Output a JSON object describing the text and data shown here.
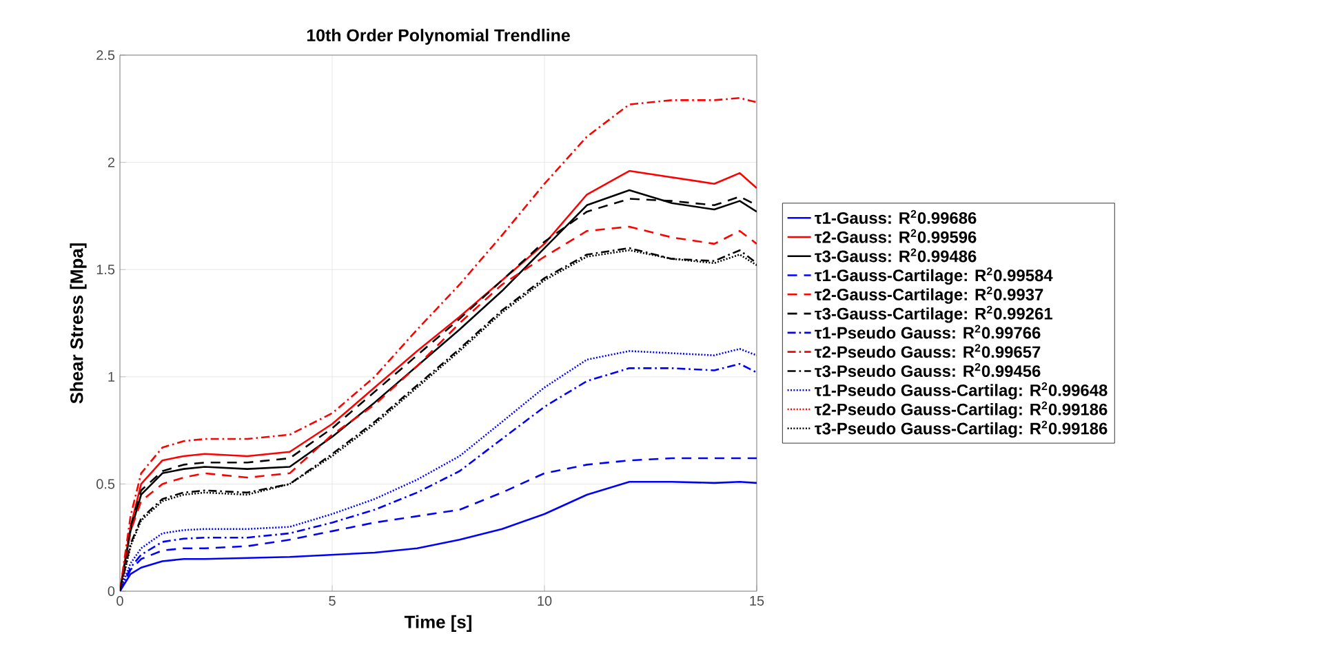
{
  "chart_data": {
    "type": "line",
    "title": "10th Order Polynomial Trendline",
    "xlabel": "Time [s]",
    "ylabel": "Shear Stress [Mpa]",
    "x": [
      0,
      0.25,
      0.5,
      1,
      1.5,
      2,
      3,
      4,
      5,
      6,
      7,
      8,
      9,
      10,
      11,
      12,
      13,
      14,
      14.6,
      15
    ],
    "xlim": [
      0,
      15
    ],
    "xticks": [
      0,
      5,
      10,
      15
    ],
    "ylim": [
      0,
      2.5
    ],
    "yticks": [
      0,
      0.5,
      1,
      1.5,
      2,
      2.5
    ],
    "grid": true,
    "legend": "right",
    "series": [
      {
        "name": "τ1-Gauss: R$^{2}$0.99686",
        "color": "#0000ff",
        "line_style": "solid",
        "values": [
          0,
          0.08,
          0.11,
          0.14,
          0.15,
          0.15,
          0.155,
          0.16,
          0.17,
          0.18,
          0.2,
          0.24,
          0.29,
          0.36,
          0.45,
          0.51,
          0.51,
          0.505,
          0.51,
          0.505
        ]
      },
      {
        "name": "τ2-Gauss: R$^{2}$0.99596",
        "color": "#ff0000",
        "line_style": "solid",
        "values": [
          0,
          0.3,
          0.5,
          0.61,
          0.63,
          0.64,
          0.63,
          0.65,
          0.78,
          0.95,
          1.12,
          1.28,
          1.45,
          1.62,
          1.85,
          1.96,
          1.93,
          1.9,
          1.95,
          1.88
        ]
      },
      {
        "name": "τ3-Gauss: R$^{2}$0.99486",
        "color": "#000000",
        "line_style": "solid",
        "values": [
          0,
          0.28,
          0.45,
          0.55,
          0.57,
          0.58,
          0.57,
          0.58,
          0.72,
          0.88,
          1.05,
          1.22,
          1.4,
          1.6,
          1.8,
          1.87,
          1.81,
          1.78,
          1.82,
          1.77
        ]
      },
      {
        "name": "τ1-Gauss-Cartilage: R$^{2}$0.99584",
        "color": "#0000ff",
        "line_style": "dashed",
        "values": [
          0,
          0.1,
          0.15,
          0.19,
          0.2,
          0.2,
          0.21,
          0.24,
          0.28,
          0.32,
          0.35,
          0.38,
          0.46,
          0.55,
          0.59,
          0.61,
          0.62,
          0.62,
          0.62,
          0.62
        ]
      },
      {
        "name": "τ2-Gauss-Cartilage: R$^{2}$0.9937",
        "color": "#ff0000",
        "line_style": "dashed",
        "values": [
          0,
          0.28,
          0.42,
          0.5,
          0.53,
          0.55,
          0.53,
          0.55,
          0.73,
          0.87,
          1.05,
          1.25,
          1.43,
          1.56,
          1.68,
          1.7,
          1.65,
          1.62,
          1.68,
          1.62
        ]
      },
      {
        "name": "τ3-Gauss-Cartilage: R$^{2}$0.99261",
        "color": "#000000",
        "line_style": "dashed",
        "values": [
          0,
          0.3,
          0.47,
          0.56,
          0.59,
          0.6,
          0.6,
          0.62,
          0.76,
          0.93,
          1.1,
          1.27,
          1.45,
          1.63,
          1.77,
          1.83,
          1.82,
          1.8,
          1.84,
          1.8
        ]
      },
      {
        "name": "τ1-Pseudo Gauss: R$^{2}$0.99766",
        "color": "#0000ff",
        "line_style": "dashdot",
        "values": [
          0,
          0.11,
          0.17,
          0.23,
          0.245,
          0.25,
          0.25,
          0.27,
          0.32,
          0.38,
          0.46,
          0.56,
          0.71,
          0.86,
          0.98,
          1.04,
          1.04,
          1.03,
          1.06,
          1.02
        ]
      },
      {
        "name": "τ2-Pseudo Gauss: R$^{2}$0.99657",
        "color": "#ff0000",
        "line_style": "dashdot",
        "values": [
          0,
          0.35,
          0.55,
          0.67,
          0.7,
          0.71,
          0.71,
          0.73,
          0.83,
          1,
          1.22,
          1.43,
          1.66,
          1.9,
          2.12,
          2.27,
          2.29,
          2.29,
          2.3,
          2.28
        ]
      },
      {
        "name": "τ3-Pseudo Gauss: R$^{2}$0.99456",
        "color": "#000000",
        "line_style": "dashdot",
        "values": [
          0,
          0.22,
          0.34,
          0.43,
          0.46,
          0.47,
          0.46,
          0.5,
          0.64,
          0.79,
          0.96,
          1.13,
          1.31,
          1.46,
          1.57,
          1.6,
          1.55,
          1.54,
          1.59,
          1.53
        ]
      },
      {
        "name": "τ1-Pseudo Gauss-Cartilag: R$^{2}$0.99648",
        "color": "#0000ff",
        "line_style": "dotted",
        "values": [
          0,
          0.13,
          0.2,
          0.27,
          0.285,
          0.29,
          0.29,
          0.3,
          0.36,
          0.43,
          0.52,
          0.63,
          0.79,
          0.95,
          1.08,
          1.12,
          1.11,
          1.1,
          1.13,
          1.1
        ]
      },
      {
        "name": "τ2-Pseudo Gauss-Cartilag: R$^{2}$0.99186",
        "color": "#ff0000",
        "line_style": "dotted",
        "values": [
          0,
          0.21,
          null,
          null,
          null,
          null,
          null,
          null,
          null,
          null,
          null,
          null,
          null,
          null,
          null,
          null,
          null,
          null,
          null,
          null
        ]
      },
      {
        "name": "τ3-Pseudo Gauss-Cartilag: R$^{2}$0.99186",
        "color": "#000000",
        "line_style": "dotted",
        "values": [
          0,
          0.21,
          0.33,
          0.42,
          0.45,
          0.46,
          0.45,
          0.5,
          0.63,
          0.78,
          0.95,
          1.12,
          1.3,
          1.45,
          1.56,
          1.59,
          1.55,
          1.53,
          1.57,
          1.52
        ]
      }
    ]
  }
}
